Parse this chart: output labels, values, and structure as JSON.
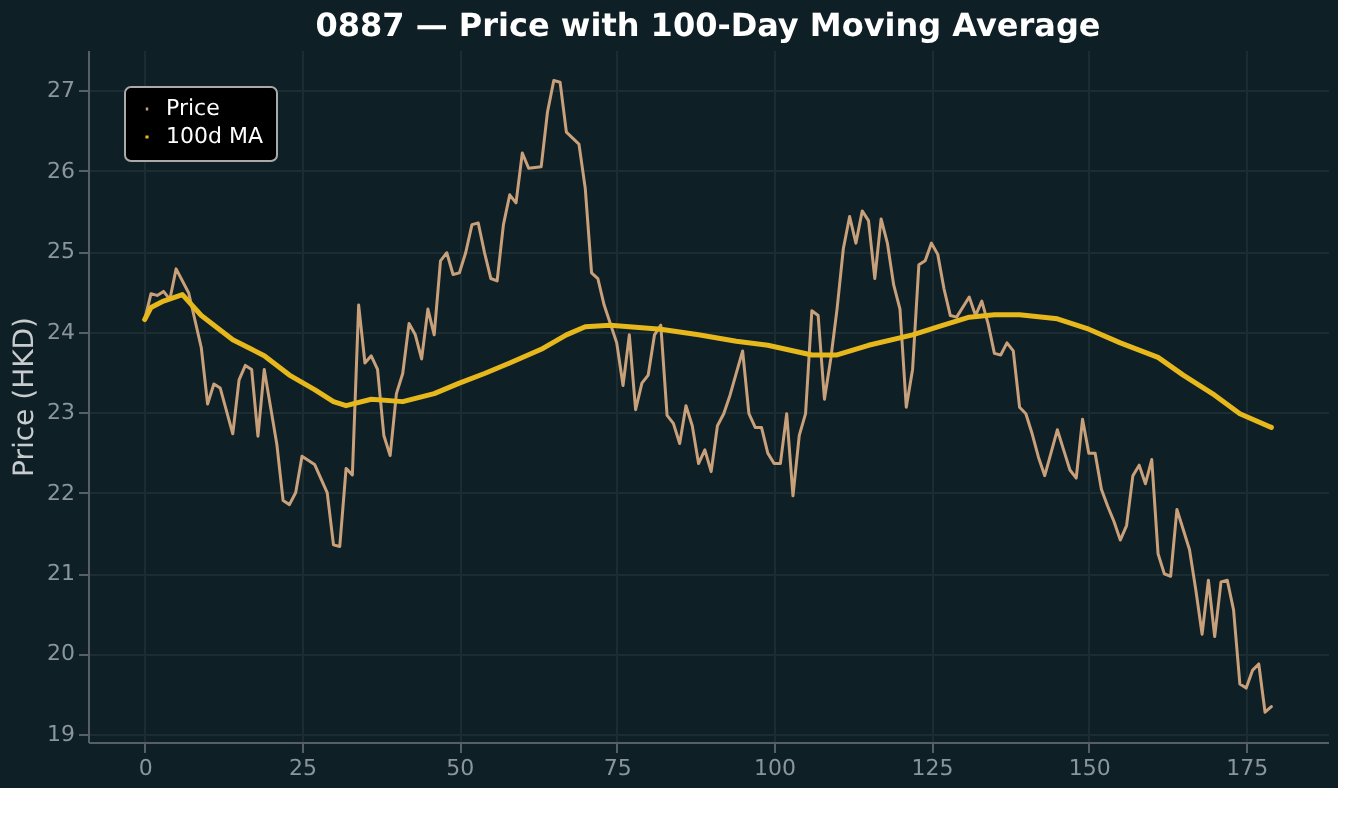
{
  "chart_data": {
    "type": "line",
    "title": "0887 — Price with 100-Day Moving Average",
    "ylabel": "Price (HKD)",
    "xlim": [
      -9,
      188
    ],
    "xticks": [
      0,
      25,
      50,
      75,
      100,
      125,
      150,
      175
    ],
    "ylim": [
      18.9,
      27.5
    ],
    "yticks": [
      19,
      20,
      21,
      22,
      23,
      24,
      25,
      26,
      27
    ],
    "grid": true,
    "legend": "top left",
    "line_style": "solid",
    "marker": "none",
    "series": [
      {
        "name": "Price",
        "color": "#c8a07a",
        "x": [
          0,
          1,
          2,
          3,
          4,
          5,
          7,
          9,
          10,
          11,
          12,
          14,
          15,
          16,
          17,
          18,
          19,
          21,
          22,
          23,
          24,
          25,
          27,
          29,
          30,
          31,
          32,
          33,
          34,
          35,
          36,
          37,
          38,
          39,
          40,
          41,
          42,
          43,
          44,
          45,
          46,
          47,
          48,
          49,
          50,
          51,
          52,
          53,
          54,
          55,
          56,
          57,
          58,
          59,
          60,
          61,
          63,
          64,
          65,
          66,
          67,
          69,
          70,
          71,
          72,
          73,
          75,
          76,
          77,
          78,
          79,
          80,
          81,
          82,
          83,
          84,
          85,
          86,
          87,
          88,
          89,
          90,
          91,
          92,
          93,
          95,
          96,
          97,
          98,
          99,
          100,
          101,
          102,
          103,
          104,
          105,
          106,
          107,
          108,
          109,
          110,
          111,
          112,
          113,
          114,
          115,
          116,
          117,
          118,
          119,
          120,
          121,
          122,
          123,
          124,
          125,
          126,
          127,
          128,
          129,
          131,
          132,
          133,
          134,
          135,
          136,
          137,
          138,
          139,
          140,
          141,
          142,
          143,
          145,
          146,
          147,
          148,
          149,
          150,
          151,
          152,
          153,
          154,
          155,
          156,
          157,
          158,
          159,
          160,
          161,
          162,
          163,
          164,
          165,
          166,
          167,
          168,
          169,
          170,
          171,
          172,
          173,
          174,
          175,
          176,
          177,
          178,
          179
        ],
        "values": [
          24.15,
          24.47,
          24.45,
          24.5,
          24.4,
          24.78,
          24.48,
          23.8,
          23.1,
          23.35,
          23.3,
          22.73,
          23.4,
          23.58,
          23.53,
          22.7,
          23.53,
          22.6,
          21.9,
          21.85,
          22.0,
          22.45,
          22.35,
          22.0,
          21.35,
          21.33,
          22.3,
          22.22,
          24.33,
          23.61,
          23.7,
          23.53,
          22.71,
          22.46,
          23.23,
          23.48,
          24.1,
          23.96,
          23.66,
          24.28,
          23.96,
          24.88,
          24.98,
          24.71,
          24.73,
          24.98,
          25.33,
          25.35,
          24.98,
          24.66,
          24.63,
          25.33,
          25.7,
          25.6,
          26.22,
          26.03,
          26.05,
          26.73,
          27.12,
          27.1,
          26.48,
          26.33,
          25.78,
          24.73,
          24.66,
          24.33,
          23.86,
          23.33,
          23.96,
          23.03,
          23.36,
          23.46,
          23.96,
          24.08,
          22.96,
          22.86,
          22.61,
          23.08,
          22.83,
          22.36,
          22.53,
          22.26,
          22.83,
          22.98,
          23.21,
          23.76,
          22.98,
          22.81,
          22.81,
          22.49,
          22.36,
          22.36,
          22.98,
          21.96,
          22.71,
          22.98,
          24.26,
          24.2,
          23.16,
          23.66,
          24.28,
          25.03,
          25.43,
          25.1,
          25.5,
          25.38,
          24.66,
          25.4,
          25.1,
          24.58,
          24.28,
          23.06,
          23.53,
          24.83,
          24.88,
          25.1,
          24.96,
          24.53,
          24.2,
          24.18,
          24.43,
          24.2,
          24.38,
          24.1,
          23.73,
          23.71,
          23.86,
          23.76,
          23.06,
          22.98,
          22.73,
          22.44,
          22.21,
          22.78,
          22.53,
          22.28,
          22.18,
          22.91,
          22.49,
          22.49,
          22.04,
          21.83,
          21.64,
          21.41,
          21.59,
          22.21,
          22.34,
          22.11,
          22.41,
          21.24,
          20.99,
          20.96,
          21.79,
          21.54,
          21.29,
          20.79,
          20.24,
          20.91,
          20.21,
          20.89,
          20.91,
          20.54,
          19.62,
          19.57,
          19.79,
          19.87,
          19.27,
          19.34
        ]
      },
      {
        "name": "100d MA",
        "color": "#e6b81c",
        "x": [
          0,
          1,
          3,
          6,
          9,
          14,
          17,
          19,
          23,
          27,
          30,
          32,
          36,
          41,
          46,
          50,
          54,
          58,
          63,
          67,
          70,
          74,
          82,
          88,
          94,
          99,
          106,
          110,
          115,
          122,
          126,
          131,
          135,
          139,
          145,
          150,
          155,
          161,
          165,
          170,
          174,
          179
        ],
        "values": [
          24.15,
          24.3,
          24.38,
          24.46,
          24.2,
          23.9,
          23.78,
          23.7,
          23.46,
          23.28,
          23.13,
          23.08,
          23.16,
          23.13,
          23.23,
          23.36,
          23.48,
          23.61,
          23.78,
          23.96,
          24.06,
          24.08,
          24.03,
          23.96,
          23.88,
          23.83,
          23.71,
          23.71,
          23.83,
          23.96,
          24.06,
          24.18,
          24.21,
          24.21,
          24.16,
          24.03,
          23.86,
          23.68,
          23.46,
          23.21,
          22.98,
          22.81
        ]
      }
    ]
  }
}
